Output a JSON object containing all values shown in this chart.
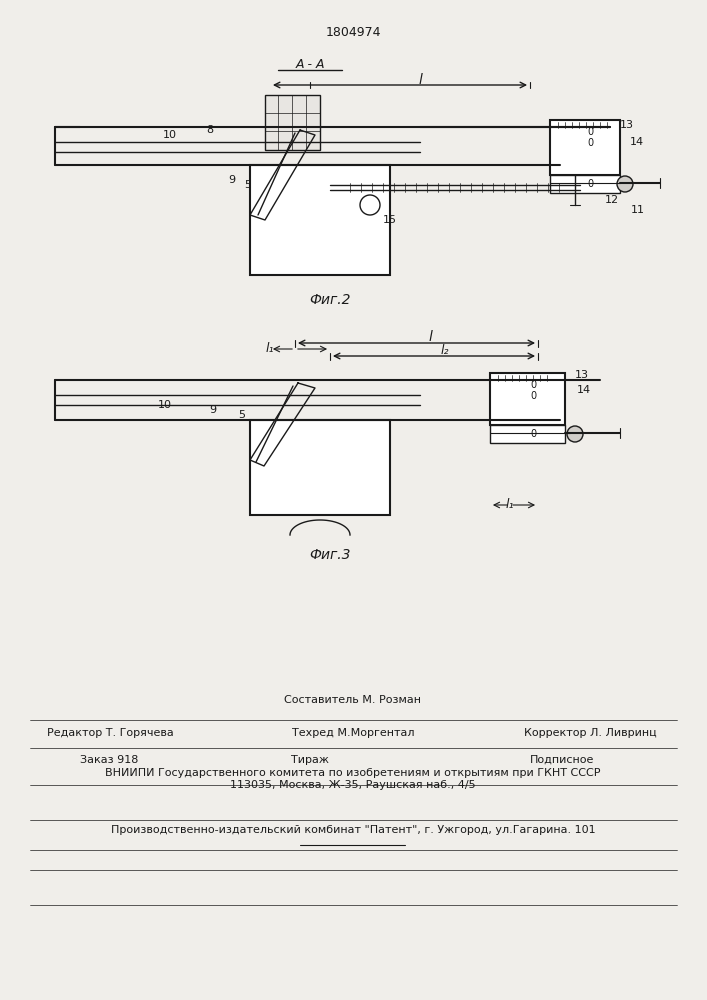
{
  "bg_color": "#f0eeea",
  "line_color": "#1a1a1a",
  "patent_number": "1804974",
  "fig2_label": "Фиг.2",
  "fig3_label": "Фиг.3",
  "footer_lines": [
    "Составитель М. Розман",
    "Редактор Т. Горячева        Техред М.Моргентал        Корректор Л. Ливринц",
    "Заказ 918          Тираж                    Подписное",
    "ВНИИПИ Государственного комитета по изобретениям и открытиям при ГКНТ СССР",
    "113035, Москва, Ж-35, Раушская наб., 4/5",
    "Производственно-издательский комбинат \"Патент\", г. Ужгород, ул.Гагарина. 101"
  ]
}
